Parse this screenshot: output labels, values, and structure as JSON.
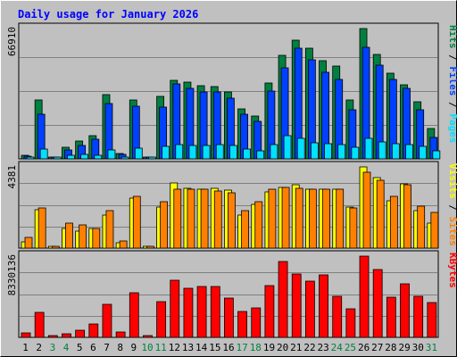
{
  "title": "Daily usage for January 2026",
  "colors": {
    "frame_bg": "#c0c0c0",
    "title": "#0000ff",
    "hits": "#008040",
    "files": "#0040ff",
    "pages": "#00e0ff",
    "visits": "#ffff00",
    "sites": "#ff8000",
    "kbytes": "#ff0000",
    "weekday_label": "#000000",
    "weekend_label": "#008040",
    "gridline": "#808080"
  },
  "chart_data": [
    {
      "type": "bar",
      "panel": "top",
      "ymax_label": "66910",
      "ymax": 66910,
      "legend": [
        {
          "text": "Pages",
          "color_key": "pages"
        },
        {
          "text": " / ",
          "color_key": "separator"
        },
        {
          "text": "Files",
          "color_key": "files"
        },
        {
          "text": " / ",
          "color_key": "separator"
        },
        {
          "text": "Hits",
          "color_key": "hits"
        }
      ],
      "categories": [
        "1",
        "2",
        "3",
        "4",
        "5",
        "6",
        "7",
        "8",
        "9",
        "10",
        "11",
        "12",
        "13",
        "14",
        "15",
        "16",
        "17",
        "18",
        "19",
        "20",
        "21",
        "22",
        "23",
        "24",
        "25",
        "26",
        "27",
        "28",
        "29",
        "30",
        "31"
      ],
      "weekend_days": [
        "3",
        "4",
        "10",
        "11",
        "17",
        "18",
        "24",
        "25",
        "31"
      ],
      "series": [
        {
          "name": "Hits",
          "color_key": "hits",
          "values": [
            1900,
            30100,
            900,
            6000,
            9300,
            11700,
            32800,
            2700,
            30400,
            500,
            32100,
            40400,
            39600,
            37700,
            37300,
            34500,
            25800,
            22200,
            39000,
            53300,
            61000,
            56700,
            50300,
            47800,
            30400,
            66910,
            53400,
            43800,
            38200,
            29400,
            15600
          ]
        },
        {
          "name": "Files",
          "color_key": "files",
          "values": [
            1500,
            23000,
            700,
            4400,
            7100,
            10000,
            28500,
            2200,
            27000,
            400,
            26400,
            38400,
            36200,
            34200,
            34400,
            31200,
            22800,
            19300,
            34800,
            46800,
            56700,
            50700,
            44300,
            41000,
            25300,
            57100,
            48000,
            41000,
            36000,
            25300,
            11200
          ]
        },
        {
          "name": "Pages",
          "color_key": "pages",
          "values": [
            700,
            5000,
            300,
            1900,
            2300,
            1900,
            4600,
            700,
            5600,
            200,
            6500,
            7400,
            6800,
            6800,
            7300,
            7000,
            5100,
            4300,
            7200,
            11700,
            10600,
            8400,
            7900,
            7500,
            5800,
            10400,
            8500,
            7800,
            7500,
            6600,
            4100
          ]
        }
      ]
    },
    {
      "type": "bar",
      "panel": "middle",
      "ymax_label": "4381",
      "ymax": 4381,
      "legend": [
        {
          "text": "Sites",
          "color_key": "sites"
        },
        {
          "text": " / ",
          "color_key": "separator"
        },
        {
          "text": "Visits",
          "color_key": "visits"
        }
      ],
      "categories": [
        "1",
        "2",
        "3",
        "4",
        "5",
        "6",
        "7",
        "8",
        "9",
        "10",
        "11",
        "12",
        "13",
        "14",
        "15",
        "16",
        "17",
        "18",
        "19",
        "20",
        "21",
        "22",
        "23",
        "24",
        "25",
        "26",
        "27",
        "28",
        "29",
        "30",
        "31"
      ],
      "weekend_days": [
        "3",
        "4",
        "10",
        "11",
        "17",
        "18",
        "24",
        "25",
        "31"
      ],
      "series": [
        {
          "name": "Visits",
          "color_key": "visits",
          "values": [
            340,
            2050,
            100,
            1070,
            900,
            1050,
            1780,
            300,
            2680,
            80,
            2220,
            3530,
            3230,
            3160,
            3240,
            3110,
            1760,
            2340,
            3030,
            3290,
            3400,
            3200,
            3200,
            3170,
            2230,
            4381,
            3800,
            2530,
            3450,
            2020,
            1350
          ]
        },
        {
          "name": "Sites",
          "color_key": "sites",
          "values": [
            580,
            2150,
            110,
            1330,
            1260,
            1080,
            2010,
            380,
            2790,
            100,
            2520,
            3190,
            3160,
            3160,
            3060,
            2970,
            2030,
            2520,
            3160,
            3280,
            3240,
            3200,
            3200,
            3160,
            2180,
            4100,
            3680,
            2800,
            3400,
            2280,
            1940
          ]
        }
      ]
    },
    {
      "type": "bar",
      "panel": "bottom",
      "ymax_label": "8330136",
      "ymax": 8330136,
      "legend": [
        {
          "text": "KBytes",
          "color_key": "kbytes"
        }
      ],
      "categories": [
        "1",
        "2",
        "3",
        "4",
        "5",
        "6",
        "7",
        "8",
        "9",
        "10",
        "11",
        "12",
        "13",
        "14",
        "15",
        "16",
        "17",
        "18",
        "19",
        "20",
        "21",
        "22",
        "23",
        "24",
        "25",
        "26",
        "27",
        "28",
        "29",
        "30",
        "31"
      ],
      "weekend_days": [
        "3",
        "4",
        "10",
        "11",
        "17",
        "18",
        "24",
        "25",
        "31"
      ],
      "series": [
        {
          "name": "KBytes",
          "color_key": "kbytes",
          "values": [
            480000,
            2530000,
            140000,
            410000,
            700000,
            1390000,
            3430000,
            570000,
            4550000,
            160000,
            3630000,
            5820000,
            5010000,
            5220000,
            5220000,
            4050000,
            2610000,
            3060000,
            5290000,
            7810000,
            6520000,
            5730000,
            6420000,
            4230000,
            2950000,
            8330136,
            6950000,
            4150000,
            5510000,
            4180000,
            3540000
          ]
        }
      ]
    }
  ]
}
